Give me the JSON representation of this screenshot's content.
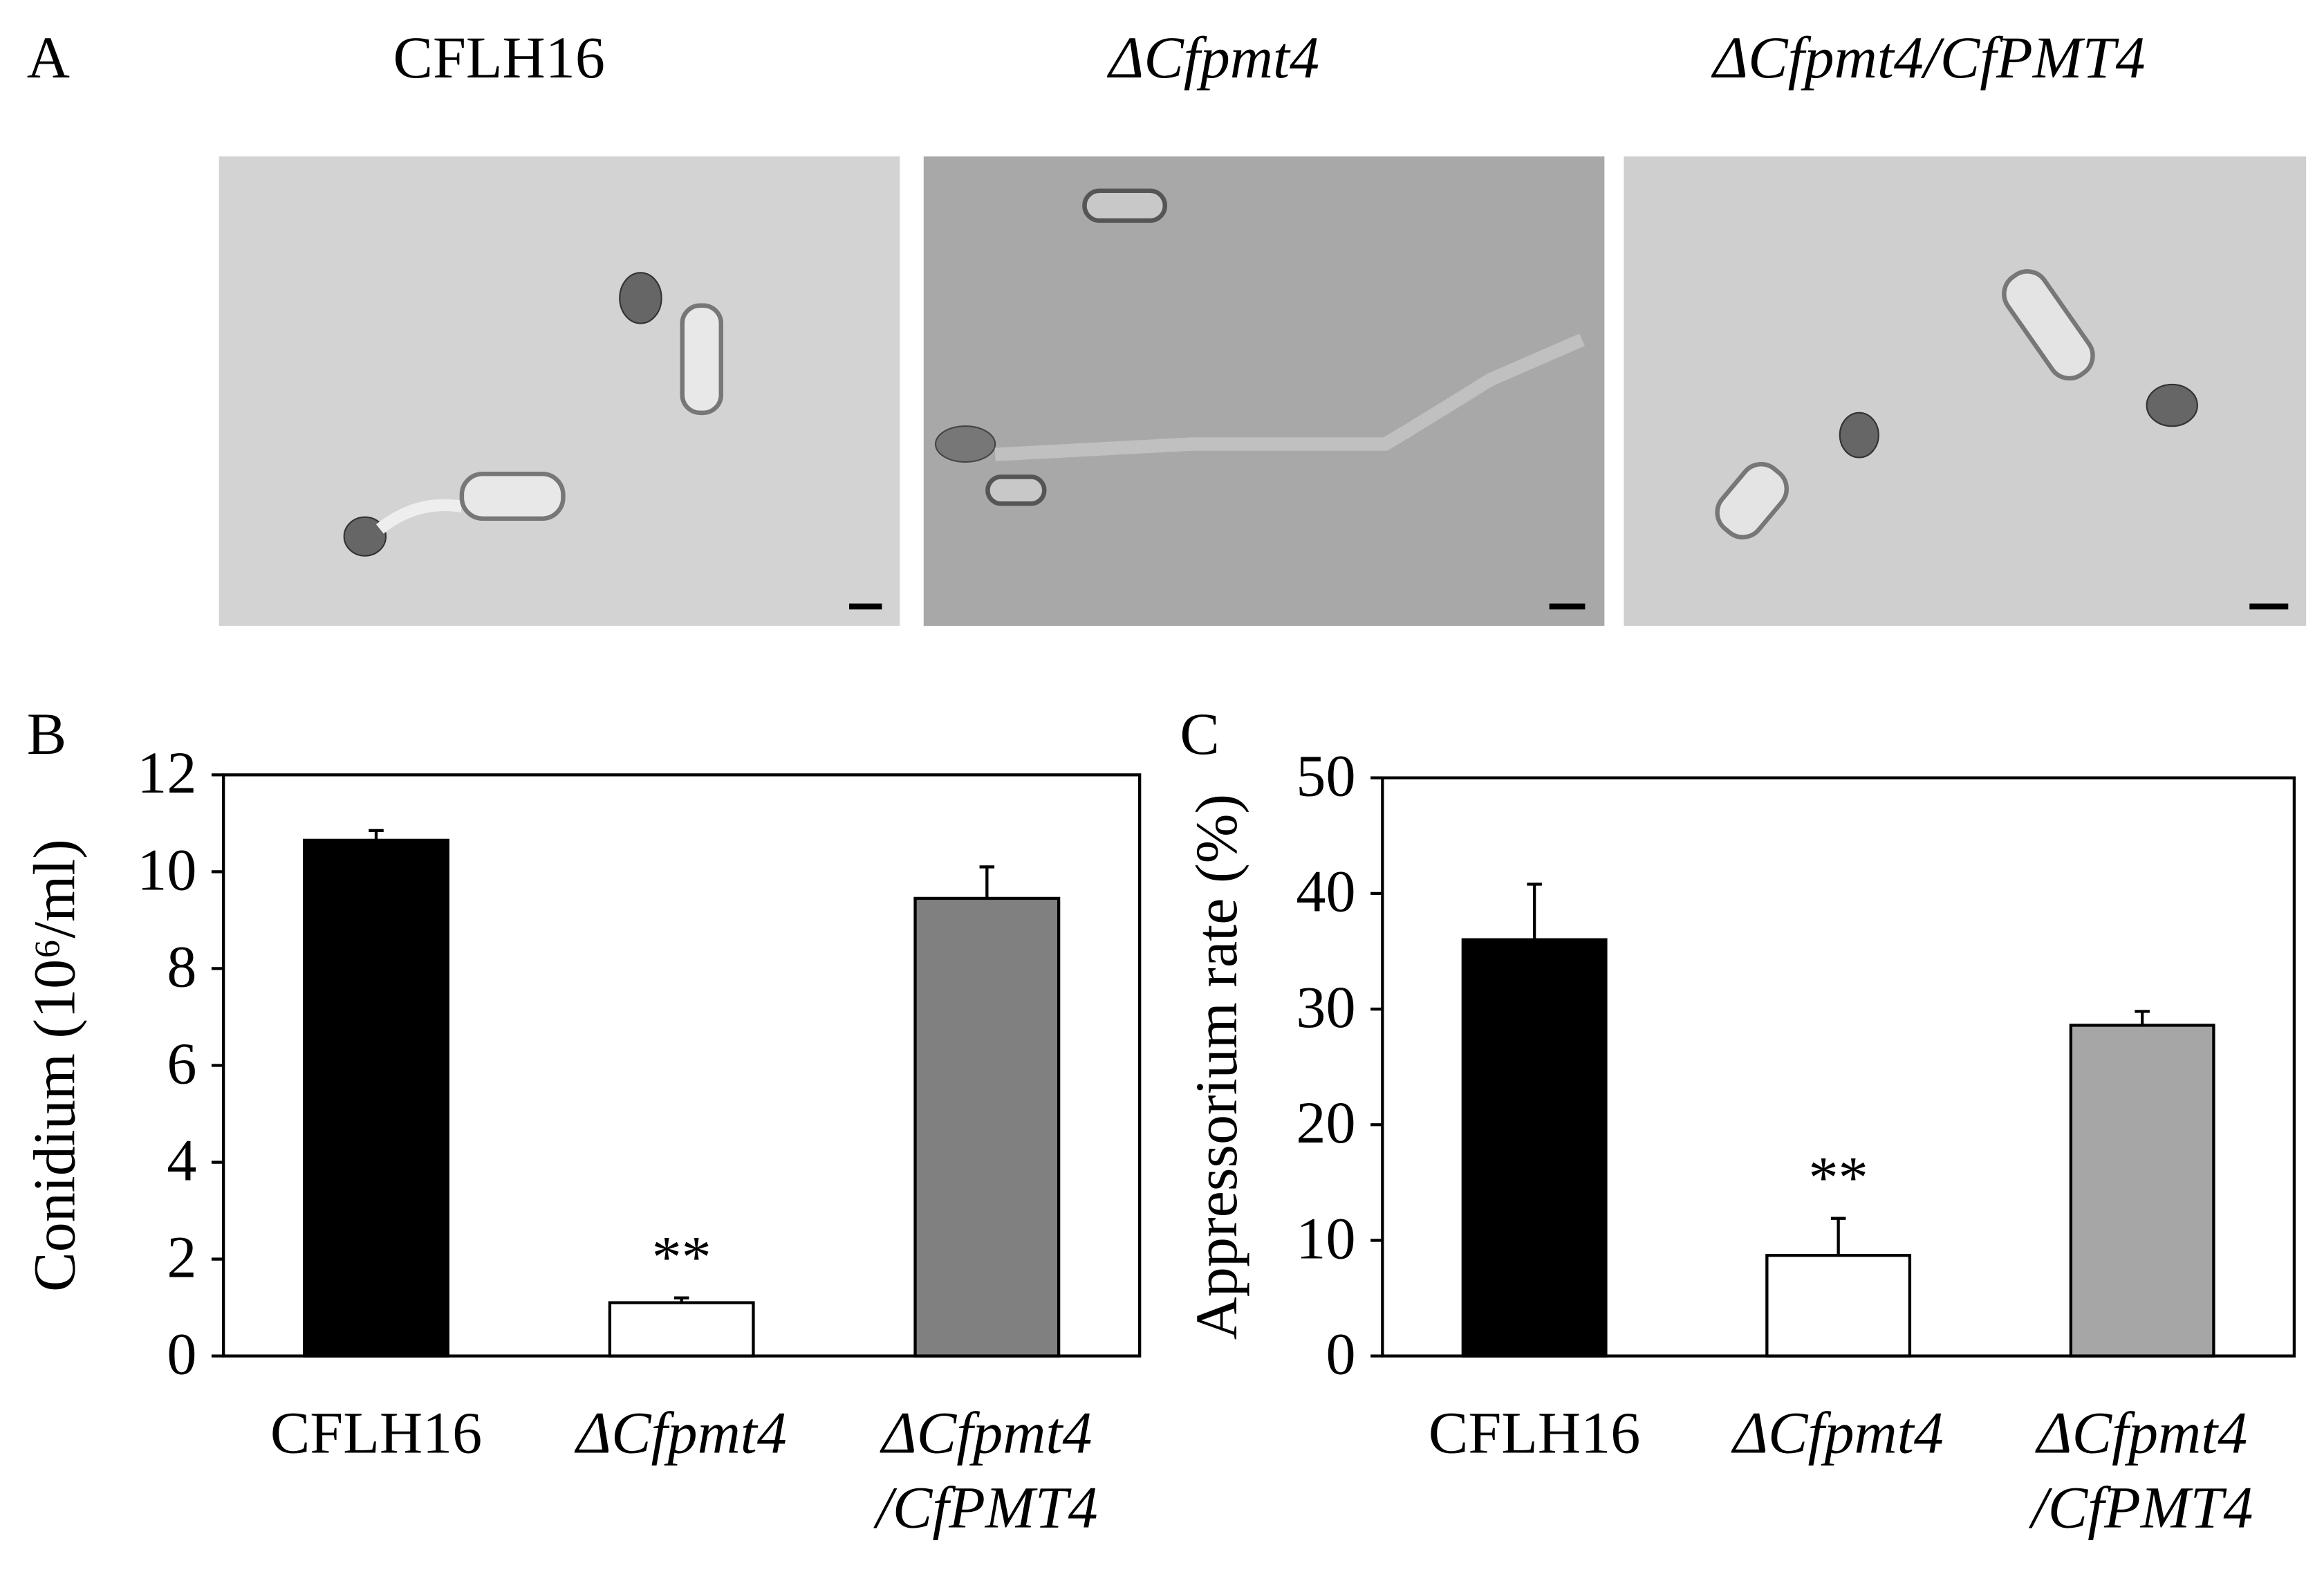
{
  "panel_a": {
    "label": "A",
    "titles": [
      "CFLH16",
      "ΔCfpmt4",
      "ΔCfpmt4/CfPMT4"
    ]
  },
  "chart_data": [
    {
      "type": "bar",
      "label": "B",
      "ylabel": "Conidium (10⁶/ml)",
      "categories": [
        "CFLH16",
        "ΔCfpmt4",
        "ΔCfpmt4/CfPMT4"
      ],
      "values": [
        10.65,
        1.1,
        9.45
      ],
      "errors": [
        0.2,
        0.1,
        0.65
      ],
      "colors": [
        "#000000",
        "#ffffff",
        "#808080"
      ],
      "ylim": [
        0,
        12
      ],
      "yticks": [
        0,
        2,
        4,
        6,
        8,
        10,
        12
      ],
      "annotations": [
        {
          "text": "**",
          "category": "ΔCfpmt4"
        }
      ]
    },
    {
      "type": "bar",
      "label": "C",
      "ylabel": "Appressorium rate (%)",
      "categories": [
        "CFLH16",
        "ΔCfpmt4",
        "ΔCfpmt4/CfPMT4"
      ],
      "values": [
        36,
        8.7,
        28.6
      ],
      "errors": [
        4.8,
        3.2,
        1.2
      ],
      "colors": [
        "#000000",
        "#ffffff",
        "#a6a6a6"
      ],
      "ylim": [
        0,
        50
      ],
      "yticks": [
        0,
        10,
        20,
        30,
        40,
        50
      ],
      "annotations": [
        {
          "text": "**",
          "category": "ΔCfpmt4"
        }
      ]
    }
  ]
}
